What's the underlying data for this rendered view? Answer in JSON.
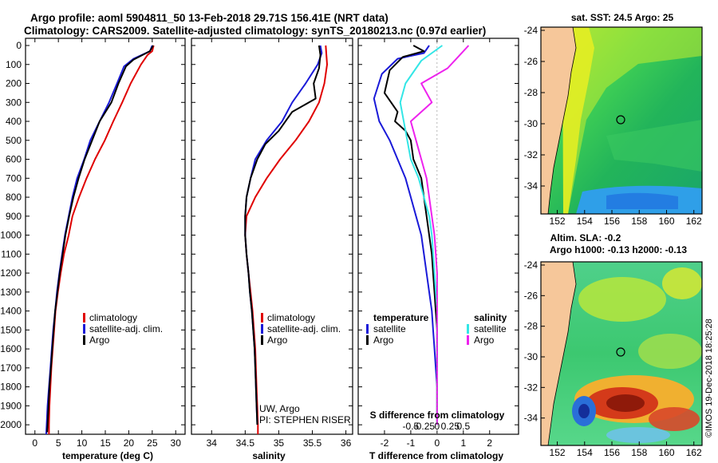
{
  "titles": {
    "line1": "Argo profile: aoml 5904811_50 13-Feb-2018 29.71S 156.41E (NRT data)",
    "line2": "Climatology: CARS2009. Satellite-adjusted climatology: synTS_20180213.nc (0.97d earlier)"
  },
  "colors": {
    "climatology": "#e00000",
    "satellite": "#1a1ad8",
    "argo": "#000000",
    "cyan": "#33e6e6",
    "magenta": "#ee22ee",
    "land": "#f6c79a"
  },
  "depth_ticks": [
    "0",
    "100",
    "200",
    "300",
    "400",
    "500",
    "600",
    "700",
    "800",
    "900",
    "1000",
    "1100",
    "1200",
    "1300",
    "1400",
    "1500",
    "1600",
    "1700",
    "1800",
    "1900",
    "2000"
  ],
  "legend": {
    "climatology": "climatology",
    "satellite_clim": "satellite-adj. clim.",
    "argo": "Argo",
    "temperature": "temperature",
    "salinity": "salinity",
    "satellite": "satellite"
  },
  "credits": {
    "uw": "UW, Argo",
    "pi": "PI: STEPHEN RISER",
    "imos": "©IMOS 19-Dec-2018 18:25:28"
  },
  "chart_data": [
    {
      "type": "line",
      "id": "temperature",
      "xlabel": "temperature (deg C)",
      "ylabel": "depth",
      "xlim": [
        -2,
        32
      ],
      "ylim": [
        2050,
        0
      ],
      "xticks": [
        "0",
        "5",
        "10",
        "15",
        "20",
        "25",
        "30"
      ],
      "series": [
        {
          "name": "climatology",
          "points": [
            [
              25.3,
              0
            ],
            [
              25,
              30
            ],
            [
              24,
              50
            ],
            [
              22.6,
              100
            ],
            [
              20.4,
              200
            ],
            [
              18.6,
              300
            ],
            [
              16.7,
              400
            ],
            [
              14.9,
              500
            ],
            [
              12.8,
              600
            ],
            [
              11,
              700
            ],
            [
              9.4,
              800
            ],
            [
              8,
              900
            ],
            [
              7.2,
              1000
            ],
            [
              6.2,
              1100
            ],
            [
              5.5,
              1200
            ],
            [
              4.9,
              1300
            ],
            [
              4.4,
              1400
            ],
            [
              4.1,
              1500
            ],
            [
              3.8,
              1600
            ],
            [
              3.5,
              1700
            ],
            [
              3.3,
              1800
            ],
            [
              3.1,
              1900
            ],
            [
              3.0,
              2000
            ],
            [
              3.0,
              2050
            ]
          ]
        },
        {
          "name": "satellite-adj. clim.",
          "points": [
            [
              25,
              0
            ],
            [
              24.5,
              30
            ],
            [
              21,
              70
            ],
            [
              19,
              110
            ],
            [
              17.5,
              200
            ],
            [
              15.8,
              300
            ],
            [
              13.8,
              400
            ],
            [
              11.8,
              500
            ],
            [
              10.5,
              600
            ],
            [
              9,
              700
            ],
            [
              8,
              800
            ],
            [
              7.2,
              900
            ],
            [
              6.4,
              1000
            ],
            [
              5.8,
              1100
            ],
            [
              5.2,
              1200
            ],
            [
              4.7,
              1300
            ],
            [
              4.3,
              1400
            ],
            [
              3.9,
              1500
            ],
            [
              3.6,
              1600
            ],
            [
              3.3,
              1700
            ],
            [
              3,
              1800
            ],
            [
              2.7,
              1900
            ],
            [
              2.5,
              2000
            ],
            [
              2.4,
              2050
            ]
          ]
        },
        {
          "name": "Argo",
          "points": [
            [
              25.2,
              0
            ],
            [
              24.5,
              30
            ],
            [
              21,
              75
            ],
            [
              19.4,
              110
            ],
            [
              17.8,
              200
            ],
            [
              16.3,
              300
            ],
            [
              13.8,
              400
            ],
            [
              12.2,
              500
            ],
            [
              10.6,
              600
            ],
            [
              9.3,
              700
            ],
            [
              8.2,
              800
            ],
            [
              7.3,
              900
            ],
            [
              6.5,
              1000
            ],
            [
              5.9,
              1100
            ],
            [
              5.3,
              1200
            ],
            [
              4.8,
              1300
            ],
            [
              4.3,
              1400
            ],
            [
              4,
              1500
            ],
            [
              3.7,
              1600
            ],
            [
              3.4,
              1700
            ],
            [
              3.1,
              1800
            ],
            [
              2.9,
              1900
            ],
            [
              2.7,
              2000
            ],
            [
              2.6,
              2040
            ]
          ]
        }
      ]
    },
    {
      "type": "line",
      "id": "salinity",
      "xlabel": "salinity",
      "ylabel": "depth",
      "xlim": [
        33.7,
        36.1
      ],
      "ylim": [
        2050,
        0
      ],
      "xticks": [
        "34",
        "34.5",
        "35",
        "35.5",
        "36"
      ],
      "series": [
        {
          "name": "climatology",
          "points": [
            [
              35.7,
              0
            ],
            [
              35.72,
              100
            ],
            [
              35.68,
              200
            ],
            [
              35.6,
              300
            ],
            [
              35.45,
              400
            ],
            [
              35.25,
              500
            ],
            [
              35.02,
              600
            ],
            [
              34.82,
              700
            ],
            [
              34.65,
              800
            ],
            [
              34.52,
              900
            ],
            [
              34.5,
              1000
            ],
            [
              34.52,
              1100
            ],
            [
              34.55,
              1200
            ],
            [
              34.58,
              1300
            ],
            [
              34.61,
              1400
            ],
            [
              34.63,
              1500
            ],
            [
              34.65,
              1600
            ],
            [
              34.66,
              1700
            ],
            [
              34.67,
              1800
            ],
            [
              34.68,
              1900
            ],
            [
              34.69,
              2000
            ],
            [
              34.69,
              2050
            ]
          ]
        },
        {
          "name": "satellite-adj. clim.",
          "points": [
            [
              35.62,
              0
            ],
            [
              35.64,
              40
            ],
            [
              35.58,
              100
            ],
            [
              35.4,
              200
            ],
            [
              35.2,
              300
            ],
            [
              35.05,
              400
            ],
            [
              34.82,
              500
            ],
            [
              34.65,
              600
            ],
            [
              34.58,
              700
            ],
            [
              34.52,
              800
            ],
            [
              34.5,
              900
            ],
            [
              34.5,
              1000
            ],
            [
              34.52,
              1100
            ],
            [
              34.55,
              1200
            ],
            [
              34.57,
              1300
            ],
            [
              34.6,
              1400
            ],
            [
              34.62,
              1500
            ],
            [
              34.64,
              1600
            ],
            [
              34.65,
              1700
            ],
            [
              34.66,
              1800
            ],
            [
              34.67,
              1900
            ],
            [
              34.68,
              2000
            ]
          ]
        },
        {
          "name": "Argo",
          "points": [
            [
              35.6,
              0
            ],
            [
              35.62,
              50
            ],
            [
              35.6,
              120
            ],
            [
              35.52,
              200
            ],
            [
              35.55,
              280
            ],
            [
              35.2,
              350
            ],
            [
              35.1,
              400
            ],
            [
              35,
              450
            ],
            [
              34.8,
              520
            ],
            [
              34.68,
              600
            ],
            [
              34.58,
              700
            ],
            [
              34.52,
              800
            ],
            [
              34.5,
              900
            ],
            [
              34.5,
              1000
            ],
            [
              34.52,
              1100
            ],
            [
              34.55,
              1200
            ],
            [
              34.57,
              1300
            ],
            [
              34.6,
              1400
            ],
            [
              34.62,
              1500
            ],
            [
              34.64,
              1600
            ],
            [
              34.65,
              1700
            ],
            [
              34.66,
              1800
            ],
            [
              34.67,
              1900
            ],
            [
              34.68,
              2000
            ]
          ]
        }
      ]
    },
    {
      "type": "line",
      "id": "difference",
      "xlabel": "T difference from climatology",
      "ylabel": "depth",
      "xlim": [
        -3,
        3.1
      ],
      "ylim": [
        2050,
        0
      ],
      "xticks": [
        "-2",
        "-1",
        "0",
        "1",
        "2"
      ],
      "s_axis_label": "S difference from climatology",
      "s_xticks": [
        "-0.5",
        "-0.25",
        "0",
        "0.25",
        "0.5"
      ],
      "series": [
        {
          "name": "temperature satellite",
          "points": [
            [
              -0.3,
              0
            ],
            [
              -0.5,
              40
            ],
            [
              -1.5,
              70
            ],
            [
              -2.1,
              150
            ],
            [
              -2.4,
              280
            ],
            [
              -2.2,
              400
            ],
            [
              -1.8,
              500
            ],
            [
              -1.5,
              600
            ],
            [
              -1.2,
              700
            ],
            [
              -1,
              800
            ],
            [
              -0.8,
              900
            ],
            [
              -0.6,
              1000
            ],
            [
              -0.5,
              1100
            ],
            [
              -0.4,
              1200
            ],
            [
              -0.3,
              1300
            ],
            [
              -0.2,
              1400
            ],
            [
              -0.15,
              1500
            ],
            [
              -0.1,
              1600
            ],
            [
              -0.05,
              1700
            ],
            [
              0,
              1800
            ],
            [
              0,
              2000
            ]
          ]
        },
        {
          "name": "temperature Argo",
          "points": [
            [
              -0.9,
              0
            ],
            [
              -0.5,
              30
            ],
            [
              -1.3,
              60
            ],
            [
              -1.8,
              130
            ],
            [
              -2.0,
              250
            ],
            [
              -1.5,
              350
            ],
            [
              -1.6,
              400
            ],
            [
              -1.2,
              450
            ],
            [
              -1.0,
              500
            ],
            [
              -0.9,
              600
            ],
            [
              -0.6,
              700
            ],
            [
              -0.5,
              800
            ],
            [
              -0.4,
              900
            ],
            [
              -0.3,
              1000
            ],
            [
              -0.2,
              1100
            ],
            [
              -0.15,
              1200
            ],
            [
              -0.1,
              1300
            ],
            [
              -0.05,
              1400
            ],
            [
              0,
              1500
            ],
            [
              0,
              2000
            ]
          ]
        },
        {
          "name": "salinity satellite",
          "points": [
            [
              0.1,
              0
            ],
            [
              -0.3,
              80
            ],
            [
              -0.6,
              200
            ],
            [
              -0.7,
              300
            ],
            [
              -0.6,
              450
            ],
            [
              -0.5,
              600
            ],
            [
              -0.35,
              700
            ],
            [
              -0.25,
              800
            ],
            [
              -0.15,
              900
            ],
            [
              -0.1,
              1000
            ],
            [
              -0.05,
              1200
            ],
            [
              0,
              1400
            ],
            [
              0,
              2000
            ]
          ]
        },
        {
          "name": "salinity Argo",
          "points": [
            [
              0.6,
              0
            ],
            [
              0.4,
              60
            ],
            [
              0.2,
              120
            ],
            [
              -0.3,
              200
            ],
            [
              -0.1,
              300
            ],
            [
              -0.5,
              400
            ],
            [
              -0.4,
              500
            ],
            [
              -0.3,
              600
            ],
            [
              -0.2,
              700
            ],
            [
              -0.15,
              800
            ],
            [
              -0.1,
              900
            ],
            [
              -0.05,
              1000
            ],
            [
              0,
              1200
            ],
            [
              0,
              2000
            ]
          ]
        }
      ]
    }
  ],
  "maps": {
    "sst": {
      "title": "sat. SST: 24.5 Argo: 25",
      "xticks": [
        "152",
        "154",
        "156",
        "158",
        "160",
        "162"
      ],
      "yticks": [
        "-24",
        "-26",
        "-28",
        "-30",
        "-32",
        "-34"
      ]
    },
    "sla": {
      "title1": "Altim. SLA: -0.2",
      "title2": "Argo h1000: -0.13 h2000: -0.13",
      "xticks": [
        "152",
        "154",
        "156",
        "158",
        "160",
        "162"
      ],
      "yticks": [
        "-24",
        "-26",
        "-28",
        "-30",
        "-32",
        "-34"
      ]
    }
  }
}
